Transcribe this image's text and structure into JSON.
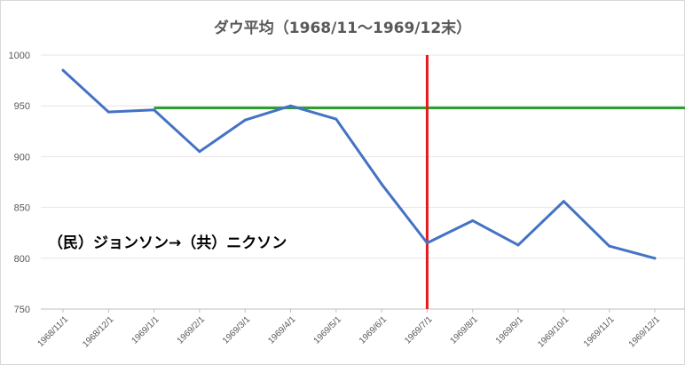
{
  "chart_data": {
    "type": "line",
    "title": "ダウ平均（1968/11～1969/12末）",
    "categories": [
      "1968/11/1",
      "1968/12/1",
      "1969/1/1",
      "1969/2/1",
      "1969/3/1",
      "1969/4/1",
      "1969/5/1",
      "1969/6/1",
      "1969/7/1",
      "1969/8/1",
      "1969/9/1",
      "1969/10/1",
      "1969/11/1",
      "1969/12/1"
    ],
    "series": [
      {
        "values": [
          985,
          944,
          946,
          905,
          936,
          950,
          937,
          873,
          815,
          837,
          813,
          856,
          812,
          800
        ],
        "color": "#4472c4"
      }
    ],
    "ylim": [
      750,
      1000
    ],
    "yticks": [
      750,
      800,
      850,
      900,
      950,
      1000
    ],
    "grid": true,
    "reference_lines": [
      {
        "orientation": "horizontal",
        "value": 948,
        "from_category": "1969/1/1",
        "color": "#2ca02c"
      },
      {
        "orientation": "vertical",
        "category": "1969/7/1",
        "color": "#e31a1c"
      }
    ],
    "annotation": "（民）ジョンソン→（共）ニクソン"
  }
}
